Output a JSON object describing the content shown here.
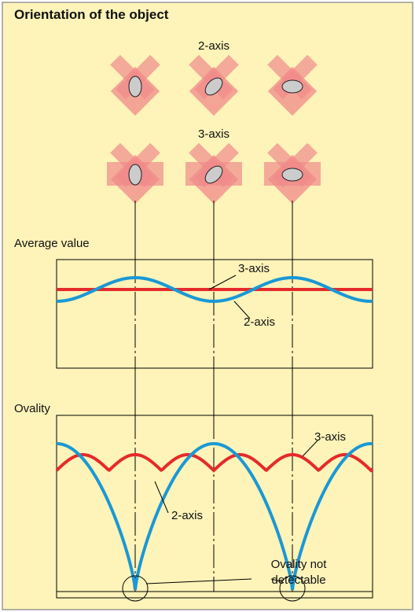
{
  "title": "Orientation of the object",
  "orientation": {
    "rows": [
      {
        "label": "2-axis"
      },
      {
        "label": "3-axis"
      }
    ]
  },
  "average_value": {
    "title": "Average value",
    "labels": {
      "three_axis": "3-axis",
      "two_axis": "2-axis"
    }
  },
  "ovality": {
    "title": "Ovality",
    "labels": {
      "three_axis": "3-axis",
      "two_axis": "2-axis"
    },
    "note": [
      "Ovality not",
      "detectable"
    ]
  }
}
